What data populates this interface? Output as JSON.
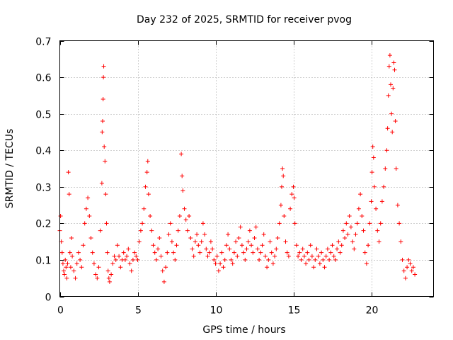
{
  "chart_data": {
    "type": "scatter",
    "title": "Day 232 of 2025, SRMTID for receiver pvog",
    "xlabel": "GPS time / hours",
    "ylabel": "SRMTID / TECUs",
    "xlim": [
      0,
      24
    ],
    "ylim": [
      0,
      0.7
    ],
    "x_ticks": [
      0,
      5,
      10,
      15,
      20
    ],
    "x_tick_labels": [
      "0",
      "5",
      "10",
      "15",
      "20"
    ],
    "y_ticks": [
      0,
      0.1,
      0.2,
      0.3,
      0.4,
      0.5,
      0.6,
      0.7
    ],
    "y_tick_labels": [
      "0",
      "0.1",
      "0.2",
      "0.3",
      "0.4",
      "0.5",
      "0.6",
      "0.7"
    ],
    "grid": true,
    "marker": "+",
    "color": "#ff0000",
    "series": [
      {
        "name": "SRMTID pvog",
        "points": [
          [
            0.0,
            0.18
          ],
          [
            0.05,
            0.22
          ],
          [
            0.1,
            0.15
          ],
          [
            0.15,
            0.12
          ],
          [
            0.2,
            0.09
          ],
          [
            0.25,
            0.07
          ],
          [
            0.3,
            0.06
          ],
          [
            0.35,
            0.1
          ],
          [
            0.4,
            0.08
          ],
          [
            0.45,
            0.05
          ],
          [
            0.5,
            0.09
          ],
          [
            0.55,
            0.34
          ],
          [
            0.6,
            0.28
          ],
          [
            0.65,
            0.12
          ],
          [
            0.7,
            0.08
          ],
          [
            0.75,
            0.16
          ],
          [
            0.8,
            0.11
          ],
          [
            0.9,
            0.07
          ],
          [
            1.0,
            0.05
          ],
          [
            1.1,
            0.09
          ],
          [
            1.2,
            0.12
          ],
          [
            1.3,
            0.1
          ],
          [
            1.4,
            0.08
          ],
          [
            1.5,
            0.14
          ],
          [
            1.6,
            0.2
          ],
          [
            1.7,
            0.24
          ],
          [
            1.8,
            0.27
          ],
          [
            1.9,
            0.22
          ],
          [
            2.0,
            0.16
          ],
          [
            2.1,
            0.12
          ],
          [
            2.2,
            0.09
          ],
          [
            2.3,
            0.06
          ],
          [
            2.4,
            0.05
          ],
          [
            2.5,
            0.08
          ],
          [
            2.6,
            0.18
          ],
          [
            2.7,
            0.31
          ],
          [
            2.72,
            0.45
          ],
          [
            2.75,
            0.48
          ],
          [
            2.78,
            0.54
          ],
          [
            2.8,
            0.6
          ],
          [
            2.82,
            0.63
          ],
          [
            2.85,
            0.41
          ],
          [
            2.9,
            0.37
          ],
          [
            2.95,
            0.28
          ],
          [
            3.0,
            0.2
          ],
          [
            3.05,
            0.12
          ],
          [
            3.1,
            0.07
          ],
          [
            3.15,
            0.05
          ],
          [
            3.2,
            0.04
          ],
          [
            3.3,
            0.06
          ],
          [
            3.4,
            0.09
          ],
          [
            3.5,
            0.11
          ],
          [
            3.6,
            0.1
          ],
          [
            3.7,
            0.14
          ],
          [
            3.8,
            0.11
          ],
          [
            3.9,
            0.08
          ],
          [
            4.0,
            0.1
          ],
          [
            4.1,
            0.12
          ],
          [
            4.2,
            0.1
          ],
          [
            4.3,
            0.11
          ],
          [
            4.4,
            0.13
          ],
          [
            4.5,
            0.09
          ],
          [
            4.6,
            0.07
          ],
          [
            4.7,
            0.1
          ],
          [
            4.8,
            0.12
          ],
          [
            4.9,
            0.11
          ],
          [
            5.0,
            0.1
          ],
          [
            5.1,
            0.15
          ],
          [
            5.2,
            0.18
          ],
          [
            5.3,
            0.2
          ],
          [
            5.4,
            0.24
          ],
          [
            5.5,
            0.3
          ],
          [
            5.6,
            0.34
          ],
          [
            5.65,
            0.37
          ],
          [
            5.7,
            0.28
          ],
          [
            5.8,
            0.22
          ],
          [
            5.9,
            0.18
          ],
          [
            6.0,
            0.14
          ],
          [
            6.1,
            0.12
          ],
          [
            6.2,
            0.1
          ],
          [
            6.3,
            0.13
          ],
          [
            6.4,
            0.16
          ],
          [
            6.5,
            0.11
          ],
          [
            6.6,
            0.07
          ],
          [
            6.7,
            0.04
          ],
          [
            6.8,
            0.08
          ],
          [
            6.9,
            0.12
          ],
          [
            7.0,
            0.17
          ],
          [
            7.1,
            0.2
          ],
          [
            7.2,
            0.15
          ],
          [
            7.3,
            0.12
          ],
          [
            7.4,
            0.1
          ],
          [
            7.5,
            0.14
          ],
          [
            7.6,
            0.18
          ],
          [
            7.7,
            0.22
          ],
          [
            7.8,
            0.39
          ],
          [
            7.85,
            0.33
          ],
          [
            7.9,
            0.29
          ],
          [
            8.0,
            0.24
          ],
          [
            8.1,
            0.21
          ],
          [
            8.2,
            0.18
          ],
          [
            8.3,
            0.22
          ],
          [
            8.4,
            0.16
          ],
          [
            8.5,
            0.13
          ],
          [
            8.6,
            0.11
          ],
          [
            8.7,
            0.15
          ],
          [
            8.8,
            0.17
          ],
          [
            8.9,
            0.14
          ],
          [
            9.0,
            0.12
          ],
          [
            9.1,
            0.15
          ],
          [
            9.2,
            0.2
          ],
          [
            9.3,
            0.17
          ],
          [
            9.4,
            0.13
          ],
          [
            9.5,
            0.11
          ],
          [
            9.6,
            0.12
          ],
          [
            9.7,
            0.15
          ],
          [
            9.8,
            0.13
          ],
          [
            9.9,
            0.1
          ],
          [
            10.0,
            0.09
          ],
          [
            10.1,
            0.11
          ],
          [
            10.2,
            0.07
          ],
          [
            10.3,
            0.09
          ],
          [
            10.4,
            0.12
          ],
          [
            10.5,
            0.08
          ],
          [
            10.6,
            0.1
          ],
          [
            10.7,
            0.14
          ],
          [
            10.8,
            0.17
          ],
          [
            10.9,
            0.13
          ],
          [
            11.0,
            0.1
          ],
          [
            11.1,
            0.09
          ],
          [
            11.2,
            0.12
          ],
          [
            11.3,
            0.15
          ],
          [
            11.4,
            0.11
          ],
          [
            11.5,
            0.16
          ],
          [
            11.6,
            0.19
          ],
          [
            11.7,
            0.14
          ],
          [
            11.8,
            0.12
          ],
          [
            11.9,
            0.1
          ],
          [
            12.0,
            0.13
          ],
          [
            12.1,
            0.15
          ],
          [
            12.2,
            0.18
          ],
          [
            12.3,
            0.14
          ],
          [
            12.4,
            0.12
          ],
          [
            12.5,
            0.16
          ],
          [
            12.6,
            0.19
          ],
          [
            12.7,
            0.13
          ],
          [
            12.8,
            0.1
          ],
          [
            12.9,
            0.12
          ],
          [
            13.0,
            0.14
          ],
          [
            13.1,
            0.17
          ],
          [
            13.2,
            0.11
          ],
          [
            13.3,
            0.08
          ],
          [
            13.4,
            0.1
          ],
          [
            13.5,
            0.15
          ],
          [
            13.6,
            0.12
          ],
          [
            13.7,
            0.09
          ],
          [
            13.8,
            0.11
          ],
          [
            13.9,
            0.13
          ],
          [
            14.0,
            0.16
          ],
          [
            14.1,
            0.2
          ],
          [
            14.2,
            0.25
          ],
          [
            14.25,
            0.3
          ],
          [
            14.3,
            0.35
          ],
          [
            14.35,
            0.33
          ],
          [
            14.4,
            0.22
          ],
          [
            14.5,
            0.15
          ],
          [
            14.6,
            0.12
          ],
          [
            14.7,
            0.11
          ],
          [
            14.8,
            0.24
          ],
          [
            14.9,
            0.28
          ],
          [
            15.0,
            0.3
          ],
          [
            15.05,
            0.27
          ],
          [
            15.1,
            0.2
          ],
          [
            15.2,
            0.14
          ],
          [
            15.3,
            0.11
          ],
          [
            15.4,
            0.12
          ],
          [
            15.5,
            0.1
          ],
          [
            15.6,
            0.13
          ],
          [
            15.7,
            0.11
          ],
          [
            15.8,
            0.09
          ],
          [
            15.9,
            0.12
          ],
          [
            16.0,
            0.1
          ],
          [
            16.1,
            0.14
          ],
          [
            16.2,
            0.11
          ],
          [
            16.3,
            0.08
          ],
          [
            16.4,
            0.1
          ],
          [
            16.5,
            0.13
          ],
          [
            16.6,
            0.11
          ],
          [
            16.7,
            0.09
          ],
          [
            16.8,
            0.12
          ],
          [
            16.9,
            0.1
          ],
          [
            17.0,
            0.08
          ],
          [
            17.1,
            0.11
          ],
          [
            17.2,
            0.13
          ],
          [
            17.3,
            0.1
          ],
          [
            17.4,
            0.12
          ],
          [
            17.5,
            0.14
          ],
          [
            17.6,
            0.11
          ],
          [
            17.7,
            0.1
          ],
          [
            17.8,
            0.13
          ],
          [
            17.9,
            0.15
          ],
          [
            18.0,
            0.12
          ],
          [
            18.1,
            0.14
          ],
          [
            18.2,
            0.18
          ],
          [
            18.3,
            0.16
          ],
          [
            18.4,
            0.2
          ],
          [
            18.5,
            0.17
          ],
          [
            18.6,
            0.22
          ],
          [
            18.7,
            0.19
          ],
          [
            18.8,
            0.15
          ],
          [
            18.9,
            0.13
          ],
          [
            19.0,
            0.17
          ],
          [
            19.1,
            0.2
          ],
          [
            19.2,
            0.24
          ],
          [
            19.3,
            0.28
          ],
          [
            19.4,
            0.22
          ],
          [
            19.5,
            0.18
          ],
          [
            19.6,
            0.12
          ],
          [
            19.7,
            0.09
          ],
          [
            19.8,
            0.14
          ],
          [
            19.9,
            0.2
          ],
          [
            20.0,
            0.26
          ],
          [
            20.05,
            0.34
          ],
          [
            20.1,
            0.41
          ],
          [
            20.15,
            0.38
          ],
          [
            20.2,
            0.3
          ],
          [
            20.3,
            0.24
          ],
          [
            20.4,
            0.18
          ],
          [
            20.5,
            0.15
          ],
          [
            20.6,
            0.2
          ],
          [
            20.7,
            0.26
          ],
          [
            20.8,
            0.3
          ],
          [
            20.9,
            0.35
          ],
          [
            21.0,
            0.4
          ],
          [
            21.05,
            0.46
          ],
          [
            21.1,
            0.55
          ],
          [
            21.15,
            0.63
          ],
          [
            21.2,
            0.66
          ],
          [
            21.25,
            0.58
          ],
          [
            21.3,
            0.5
          ],
          [
            21.35,
            0.45
          ],
          [
            21.4,
            0.57
          ],
          [
            21.45,
            0.64
          ],
          [
            21.5,
            0.62
          ],
          [
            21.55,
            0.48
          ],
          [
            21.6,
            0.35
          ],
          [
            21.7,
            0.25
          ],
          [
            21.8,
            0.2
          ],
          [
            21.9,
            0.15
          ],
          [
            22.0,
            0.1
          ],
          [
            22.1,
            0.07
          ],
          [
            22.2,
            0.05
          ],
          [
            22.3,
            0.08
          ],
          [
            22.4,
            0.1
          ],
          [
            22.5,
            0.09
          ],
          [
            22.6,
            0.07
          ],
          [
            22.7,
            0.08
          ],
          [
            22.8,
            0.06
          ]
        ]
      }
    ]
  }
}
